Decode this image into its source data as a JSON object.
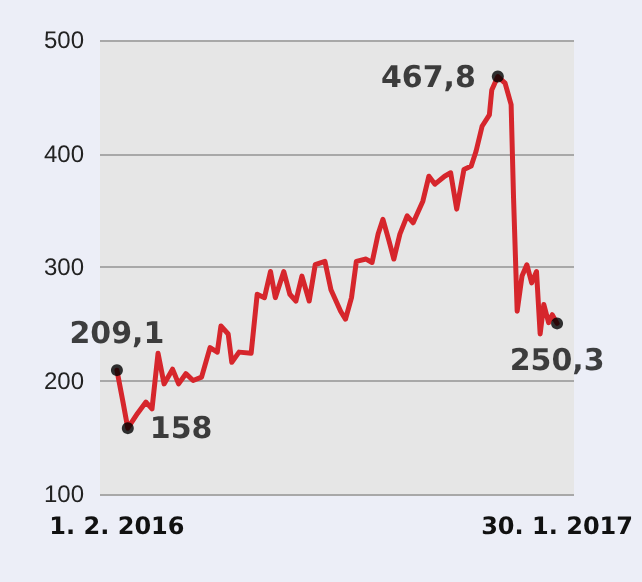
{
  "chart_data": {
    "type": "line",
    "color": "#d6262c",
    "marker": "none",
    "line_style": "solid",
    "grid": "y",
    "xlim": [
      "2016-01-18",
      "2017-02-13"
    ],
    "xticks": [
      {
        "value": "2016-02-01",
        "label": "1. 2. 2016"
      },
      {
        "value": "2017-01-30",
        "label": "30. 1. 2017"
      }
    ],
    "ylim": [
      100,
      500
    ],
    "yticks": [
      100,
      200,
      300,
      400,
      500
    ],
    "x": [
      "2016-02-01",
      "2016-02-06",
      "2016-02-10",
      "2016-02-18",
      "2016-02-25",
      "2016-03-01",
      "2016-03-06",
      "2016-03-11",
      "2016-03-18",
      "2016-03-23",
      "2016-03-29",
      "2016-04-04",
      "2016-04-11",
      "2016-04-18",
      "2016-04-24",
      "2016-04-27",
      "2016-05-03",
      "2016-05-06",
      "2016-05-12",
      "2016-05-22",
      "2016-05-27",
      "2016-06-02",
      "2016-06-07",
      "2016-06-11",
      "2016-06-18",
      "2016-06-23",
      "2016-06-28",
      "2016-07-03",
      "2016-07-09",
      "2016-07-14",
      "2016-07-22",
      "2016-07-27",
      "2016-08-04",
      "2016-08-08",
      "2016-08-13",
      "2016-08-17",
      "2016-08-25",
      "2016-08-30",
      "2016-09-04",
      "2016-09-08",
      "2016-09-13",
      "2016-09-17",
      "2016-09-22",
      "2016-09-28",
      "2016-10-03",
      "2016-10-11",
      "2016-10-16",
      "2016-10-21",
      "2016-10-29",
      "2016-11-03",
      "2016-11-08",
      "2016-11-14",
      "2016-11-20",
      "2016-11-24",
      "2016-11-29",
      "2016-12-05",
      "2016-12-07",
      "2016-12-12",
      "2016-12-18",
      "2016-12-23",
      "2016-12-25",
      "2016-12-28",
      "2017-01-01",
      "2017-01-05",
      "2017-01-09",
      "2017-01-13",
      "2017-01-16",
      "2017-01-19",
      "2017-01-23",
      "2017-01-26",
      "2017-01-30"
    ],
    "values": [
      209.1,
      181,
      158,
      171,
      181,
      175,
      224,
      197,
      210,
      197,
      206,
      200,
      203,
      229,
      225,
      248,
      241,
      216,
      225,
      224,
      276,
      273,
      296,
      273,
      296,
      276,
      270,
      292,
      270,
      302,
      305,
      280,
      261,
      254,
      273,
      305,
      307,
      304,
      329,
      342,
      323,
      307,
      329,
      345,
      339,
      358,
      380,
      373,
      380,
      383,
      351,
      386,
      389,
      402,
      424,
      434,
      456,
      467.8,
      462,
      443,
      361,
      261,
      292,
      302,
      286,
      296,
      241,
      267,
      251,
      258,
      250.3
    ],
    "annotations": [
      {
        "text": "209,1",
        "x": "2016-02-01",
        "y": 209.1
      },
      {
        "text": "158",
        "x": "2016-02-10",
        "y": 158
      },
      {
        "text": "467,8",
        "x": "2016-12-12",
        "y": 467.8
      },
      {
        "text": "250,3",
        "x": "2017-01-30",
        "y": 250.3
      }
    ]
  }
}
